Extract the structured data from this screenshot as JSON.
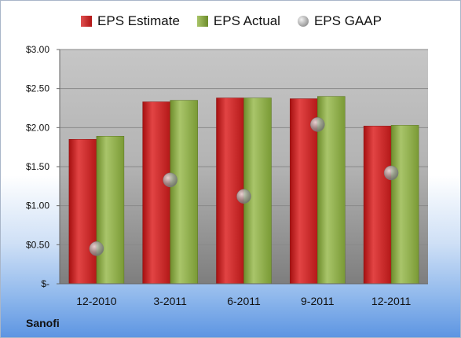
{
  "company": "Sanofi",
  "legend": {
    "estimate": "EPS Estimate",
    "actual": "EPS Actual",
    "gaap": "EPS GAAP"
  },
  "chart_data": {
    "type": "bar",
    "categories": [
      "12-2010",
      "3-2011",
      "6-2011",
      "9-2011",
      "12-2011"
    ],
    "series": [
      {
        "name": "EPS Estimate",
        "type": "bar",
        "color": "#c81e1e",
        "values": [
          1.85,
          2.33,
          2.38,
          2.37,
          2.02
        ]
      },
      {
        "name": "EPS Actual",
        "type": "bar",
        "color": "#8fab4a",
        "values": [
          1.89,
          2.35,
          2.38,
          2.4,
          2.03
        ]
      },
      {
        "name": "EPS GAAP",
        "type": "scatter",
        "color": "#9a9a9a",
        "values": [
          0.45,
          1.33,
          1.12,
          2.04,
          1.42
        ]
      }
    ],
    "yticks": [
      {
        "value": 0,
        "label": "$-"
      },
      {
        "value": 0.5,
        "label": "$0.50"
      },
      {
        "value": 1.0,
        "label": "$1.00"
      },
      {
        "value": 1.5,
        "label": "$1.50"
      },
      {
        "value": 2.0,
        "label": "$2.00"
      },
      {
        "value": 2.5,
        "label": "$2.50"
      },
      {
        "value": 3.0,
        "label": "$3.00"
      }
    ],
    "ylim": [
      0,
      3.0
    ],
    "grid": true,
    "legend_position": "top"
  }
}
